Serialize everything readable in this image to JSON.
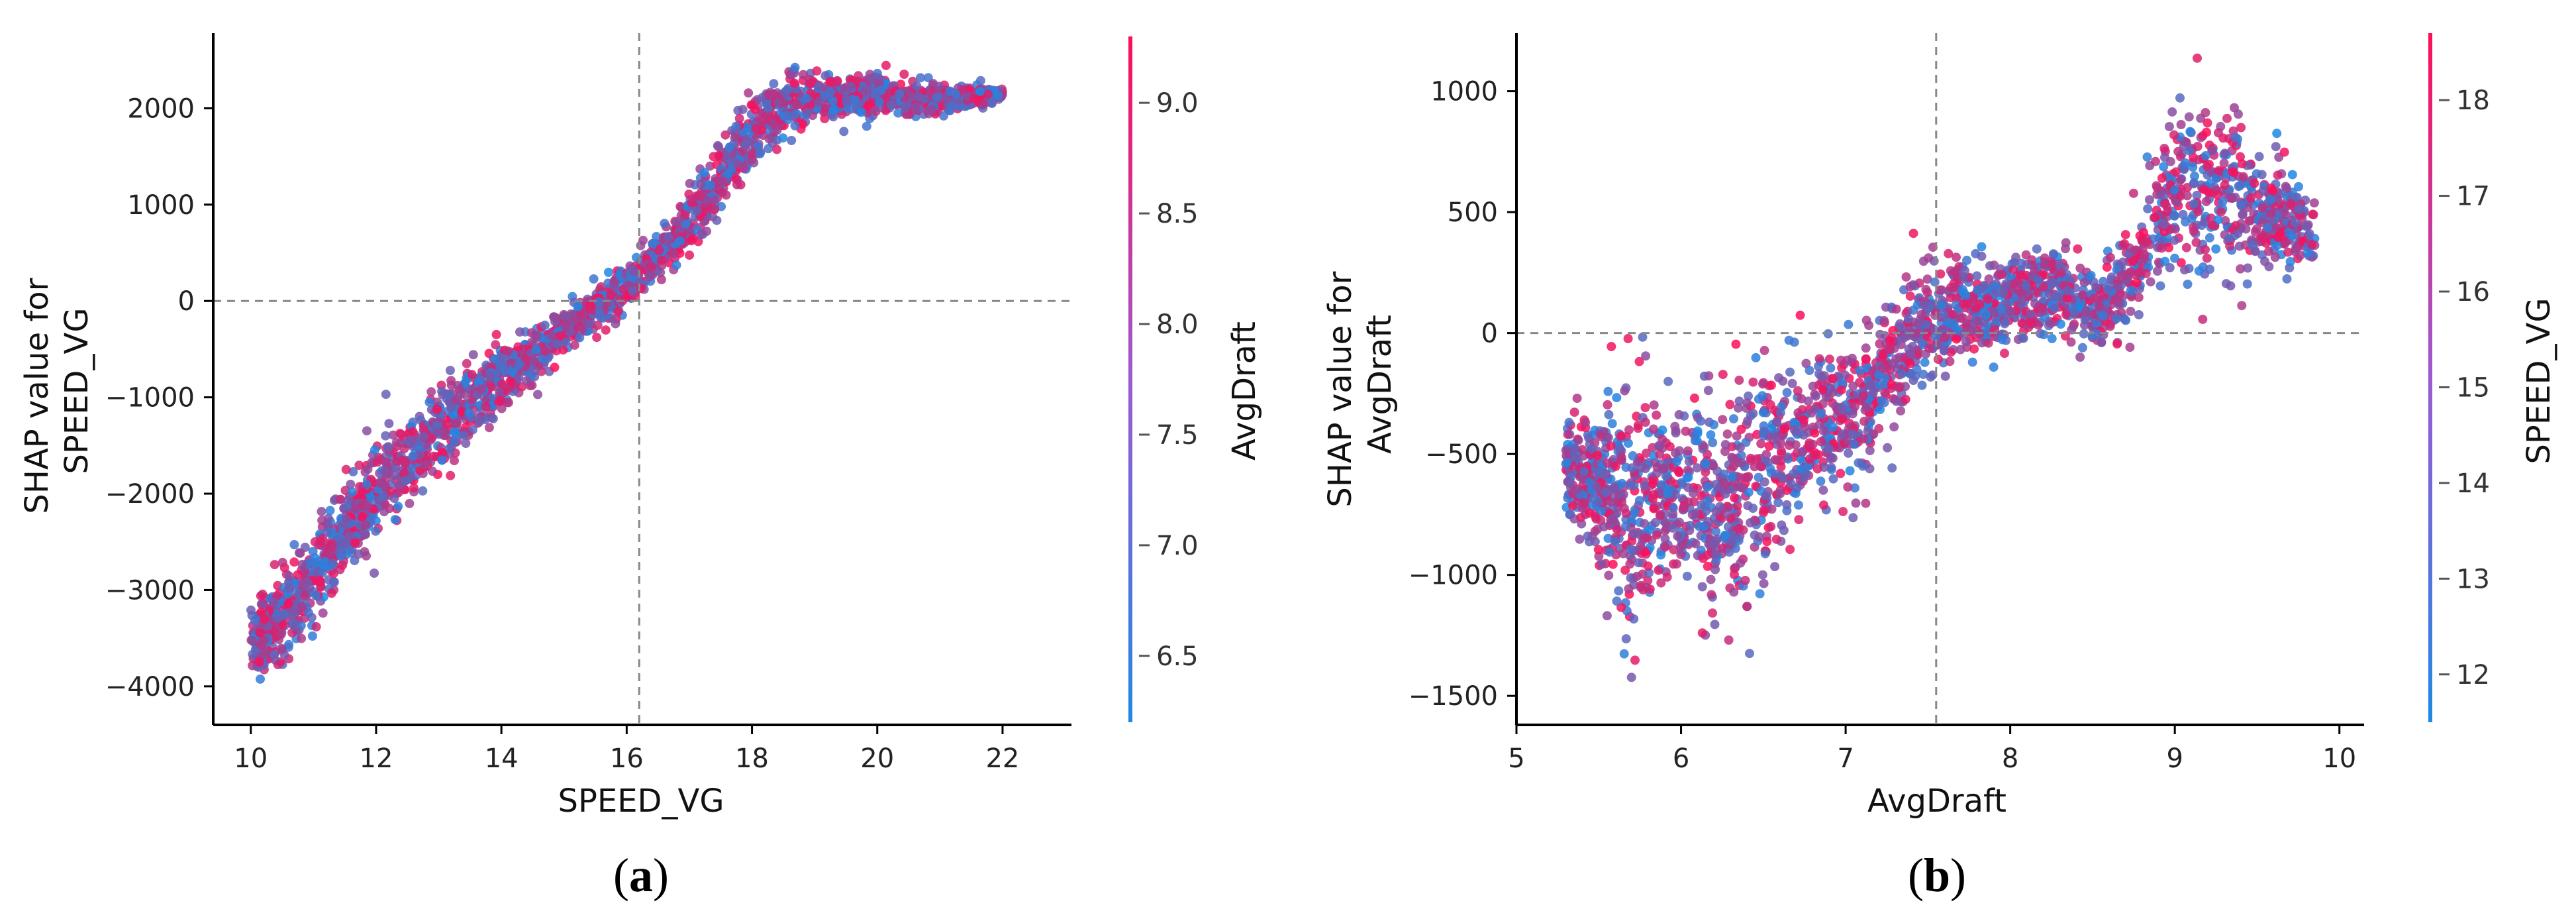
{
  "figure_captions": [
    {
      "open": "(",
      "letter": "a",
      "close": ")"
    },
    {
      "open": "(",
      "letter": "b",
      "close": ")"
    }
  ],
  "chart_data": [
    {
      "type": "scatter",
      "panel": "a",
      "title": "",
      "xlabel": "SPEED_VG",
      "ylabel_lines": [
        "SHAP value for",
        "SPEED_VG"
      ],
      "xlim": [
        9.4,
        23.1
      ],
      "ylim": [
        -4400,
        2780
      ],
      "xticks": [
        10,
        12,
        14,
        16,
        18,
        20,
        22
      ],
      "yticks": [
        -4000,
        -3000,
        -2000,
        -1000,
        0,
        1000,
        2000
      ],
      "xtick_labels": [
        "10",
        "12",
        "14",
        "16",
        "18",
        "20",
        "22"
      ],
      "ytick_labels": [
        "−4000",
        "−3000",
        "−2000",
        "−1000",
        "0",
        "1000",
        "2000"
      ],
      "hline_y": 0,
      "vline_x": 16.2,
      "colorbar": {
        "label": "AvgDraft",
        "range": [
          6.2,
          9.3
        ],
        "ticks": [
          6.5,
          7.0,
          7.5,
          8.0,
          8.5,
          9.0
        ],
        "tick_labels": [
          "6.5",
          "7.0",
          "7.5",
          "8.0",
          "8.5",
          "9.0"
        ],
        "color_low": "#1e88e5",
        "color_high": "#ff0d57"
      },
      "trend_points": [
        {
          "x": 10.0,
          "y": -3550,
          "spread": 450
        },
        {
          "x": 10.5,
          "y": -3300,
          "spread": 550
        },
        {
          "x": 11.0,
          "y": -2850,
          "spread": 550
        },
        {
          "x": 11.5,
          "y": -2400,
          "spread": 550
        },
        {
          "x": 12.0,
          "y": -2000,
          "spread": 550
        },
        {
          "x": 12.5,
          "y": -1650,
          "spread": 550
        },
        {
          "x": 13.0,
          "y": -1300,
          "spread": 500
        },
        {
          "x": 13.5,
          "y": -1050,
          "spread": 450
        },
        {
          "x": 14.0,
          "y": -800,
          "spread": 400
        },
        {
          "x": 14.5,
          "y": -550,
          "spread": 320
        },
        {
          "x": 15.0,
          "y": -300,
          "spread": 260
        },
        {
          "x": 15.5,
          "y": -100,
          "spread": 240
        },
        {
          "x": 16.0,
          "y": 150,
          "spread": 250
        },
        {
          "x": 16.5,
          "y": 450,
          "spread": 300
        },
        {
          "x": 17.0,
          "y": 800,
          "spread": 320
        },
        {
          "x": 17.5,
          "y": 1300,
          "spread": 380
        },
        {
          "x": 18.0,
          "y": 1750,
          "spread": 380
        },
        {
          "x": 18.5,
          "y": 2050,
          "spread": 350
        },
        {
          "x": 19.0,
          "y": 2150,
          "spread": 300
        },
        {
          "x": 19.5,
          "y": 2100,
          "spread": 280
        },
        {
          "x": 20.0,
          "y": 2150,
          "spread": 260
        },
        {
          "x": 20.5,
          "y": 2100,
          "spread": 230
        },
        {
          "x": 21.0,
          "y": 2100,
          "spread": 180
        },
        {
          "x": 21.5,
          "y": 2120,
          "spread": 120
        },
        {
          "x": 22.0,
          "y": 2140,
          "spread": 60
        }
      ]
    },
    {
      "type": "scatter",
      "panel": "b",
      "title": "",
      "xlabel": "AvgDraft",
      "ylabel_lines": [
        "SHAP value for",
        "AvgDraft"
      ],
      "xlim": [
        5.0,
        10.15
      ],
      "ylim": [
        -1620,
        1240
      ],
      "xticks": [
        5,
        6,
        7,
        8,
        9,
        10
      ],
      "yticks": [
        -1500,
        -1000,
        -500,
        0,
        500,
        1000
      ],
      "xtick_labels": [
        "5",
        "6",
        "7",
        "8",
        "9",
        "10"
      ],
      "ytick_labels": [
        "−1500",
        "−1000",
        "−500",
        "0",
        "500",
        "1000"
      ],
      "hline_y": 0,
      "vline_x": 7.55,
      "colorbar": {
        "label": "SPEED_VG",
        "range": [
          11.5,
          18.7
        ],
        "ticks": [
          12,
          13,
          14,
          15,
          16,
          17,
          18
        ],
        "tick_labels": [
          "12",
          "13",
          "14",
          "15",
          "16",
          "17",
          "18"
        ],
        "color_low": "#1e88e5",
        "color_high": "#ff0d57"
      },
      "trend_points": [
        {
          "x": 5.3,
          "y": -550,
          "spread": 250
        },
        {
          "x": 5.5,
          "y": -650,
          "spread": 350
        },
        {
          "x": 5.7,
          "y": -800,
          "spread": 650
        },
        {
          "x": 5.9,
          "y": -650,
          "spread": 400
        },
        {
          "x": 6.1,
          "y": -650,
          "spread": 500
        },
        {
          "x": 6.3,
          "y": -700,
          "spread": 550
        },
        {
          "x": 6.5,
          "y": -550,
          "spread": 500
        },
        {
          "x": 6.7,
          "y": -450,
          "spread": 400
        },
        {
          "x": 6.9,
          "y": -350,
          "spread": 350
        },
        {
          "x": 7.1,
          "y": -300,
          "spread": 350
        },
        {
          "x": 7.3,
          "y": -150,
          "spread": 350
        },
        {
          "x": 7.5,
          "y": 50,
          "spread": 300
        },
        {
          "x": 7.7,
          "y": 100,
          "spread": 220
        },
        {
          "x": 7.9,
          "y": 120,
          "spread": 200
        },
        {
          "x": 8.1,
          "y": 150,
          "spread": 200
        },
        {
          "x": 8.3,
          "y": 170,
          "spread": 200
        },
        {
          "x": 8.5,
          "y": 100,
          "spread": 200
        },
        {
          "x": 8.7,
          "y": 200,
          "spread": 250
        },
        {
          "x": 8.9,
          "y": 450,
          "spread": 350
        },
        {
          "x": 9.1,
          "y": 600,
          "spread": 450
        },
        {
          "x": 9.3,
          "y": 550,
          "spread": 400
        },
        {
          "x": 9.5,
          "y": 500,
          "spread": 300
        },
        {
          "x": 9.7,
          "y": 450,
          "spread": 250
        },
        {
          "x": 9.85,
          "y": 400,
          "spread": 150
        }
      ]
    }
  ]
}
